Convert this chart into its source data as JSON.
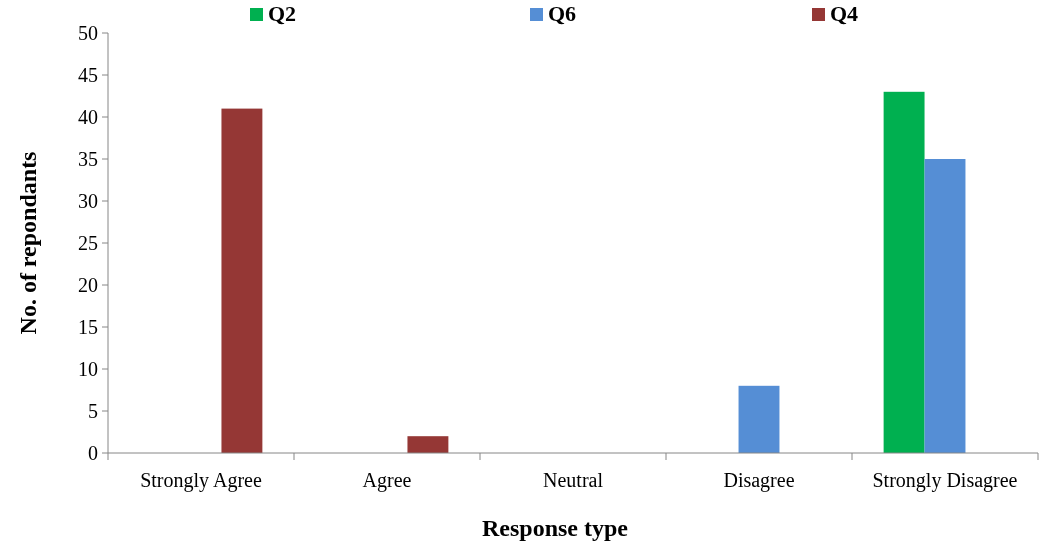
{
  "chart_data": {
    "type": "bar",
    "xlabel": "Response type",
    "ylabel": "No. of repondants",
    "categories": [
      "Strongly Agree",
      "Agree",
      "Neutral",
      "Disagree",
      "Strongly Disagree"
    ],
    "series": [
      {
        "name": "Q2",
        "color": "#00b050",
        "values": [
          0,
          0,
          0,
          0,
          43
        ]
      },
      {
        "name": "Q6",
        "color": "#558ed5",
        "values": [
          0,
          0,
          0,
          8,
          35
        ]
      },
      {
        "name": "Q4",
        "color": "#953735",
        "values": [
          41,
          2,
          0,
          0,
          0
        ]
      }
    ],
    "ylim": [
      0,
      50
    ],
    "yticks": [
      0,
      5,
      10,
      15,
      20,
      25,
      30,
      35,
      40,
      45,
      50
    ],
    "grid": false,
    "legend": "top"
  }
}
